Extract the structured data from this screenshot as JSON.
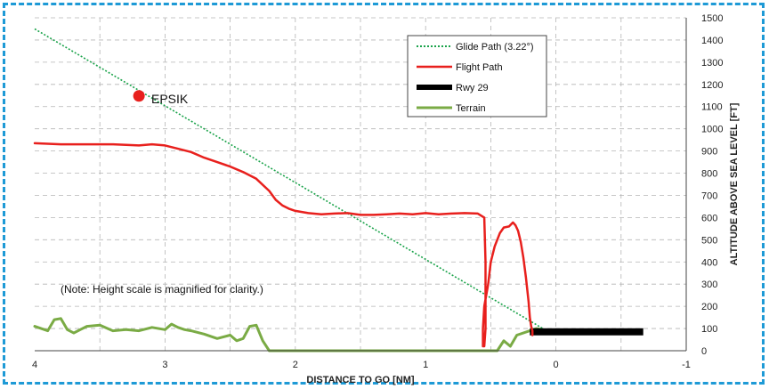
{
  "chart_data": {
    "type": "line",
    "title": "",
    "xlabel": "DISTANCE TO GO [NM]",
    "ylabel": "ALTITUDE ABOVE SEA LEVEL [FT]",
    "xlim": [
      4,
      -1
    ],
    "ylim": [
      0,
      1500
    ],
    "x_ticks": [
      4,
      3,
      2,
      1,
      0,
      -1
    ],
    "y_ticks": [
      0,
      100,
      200,
      300,
      400,
      500,
      600,
      700,
      800,
      900,
      1000,
      1100,
      1200,
      1300,
      1400,
      1500
    ],
    "grid": true,
    "legend_position": "top-right",
    "note": "(Note: Height scale is magnified for clarity.)",
    "waypoint": {
      "label": "EPSIK",
      "x": 3.2,
      "y": 1148,
      "color": "#e8201d"
    },
    "series": [
      {
        "name": "Glide Path (3.22°)",
        "style": "dotted",
        "color": "#1aa34a",
        "x": [
          4.0,
          0.1
        ],
        "y": [
          1450,
          100
        ]
      },
      {
        "name": "Flight Path",
        "style": "solid",
        "color": "#e8201d",
        "x": [
          4.0,
          3.8,
          3.6,
          3.4,
          3.2,
          3.1,
          3.0,
          2.9,
          2.8,
          2.7,
          2.6,
          2.5,
          2.4,
          2.3,
          2.2,
          2.15,
          2.1,
          2.05,
          2.0,
          1.9,
          1.8,
          1.7,
          1.6,
          1.5,
          1.4,
          1.3,
          1.2,
          1.1,
          1.0,
          0.9,
          0.8,
          0.7,
          0.6,
          0.55,
          0.54,
          0.54,
          0.55,
          0.56,
          0.56,
          0.55,
          0.52,
          0.5,
          0.47,
          0.43,
          0.4,
          0.36,
          0.33,
          0.31,
          0.29,
          0.27,
          0.25,
          0.23,
          0.21,
          0.2,
          0.19,
          0.18,
          0.18
        ],
        "y": [
          935,
          930,
          930,
          930,
          925,
          930,
          925,
          910,
          895,
          870,
          850,
          830,
          805,
          775,
          720,
          680,
          655,
          640,
          630,
          620,
          615,
          618,
          620,
          612,
          612,
          615,
          618,
          615,
          620,
          615,
          618,
          620,
          618,
          600,
          400,
          100,
          20,
          20,
          100,
          200,
          300,
          400,
          470,
          530,
          555,
          560,
          578,
          565,
          540,
          490,
          420,
          330,
          220,
          150,
          110,
          90,
          70
        ]
      },
      {
        "name": "Rwy 29",
        "style": "thick",
        "color": "#000000",
        "x": [
          0.2,
          -0.67
        ],
        "y": [
          85,
          85
        ]
      },
      {
        "name": "Terrain",
        "style": "solid",
        "color": "#7aab45",
        "x": [
          4.0,
          3.9,
          3.85,
          3.8,
          3.75,
          3.7,
          3.65,
          3.6,
          3.5,
          3.4,
          3.3,
          3.2,
          3.1,
          3.0,
          2.95,
          2.9,
          2.85,
          2.8,
          2.7,
          2.6,
          2.5,
          2.45,
          2.4,
          2.35,
          2.3,
          2.25,
          2.2,
          2.15,
          2.1,
          2.0,
          1.5,
          1.0,
          0.6,
          0.45,
          0.4,
          0.35,
          0.3,
          0.2,
          0.15,
          0.1
        ],
        "y": [
          110,
          90,
          140,
          145,
          95,
          80,
          95,
          110,
          115,
          90,
          95,
          90,
          105,
          95,
          120,
          105,
          95,
          90,
          75,
          55,
          70,
          45,
          55,
          110,
          115,
          45,
          0,
          0,
          0,
          0,
          0,
          0,
          0,
          0,
          45,
          20,
          70,
          90,
          100,
          95
        ]
      }
    ]
  }
}
